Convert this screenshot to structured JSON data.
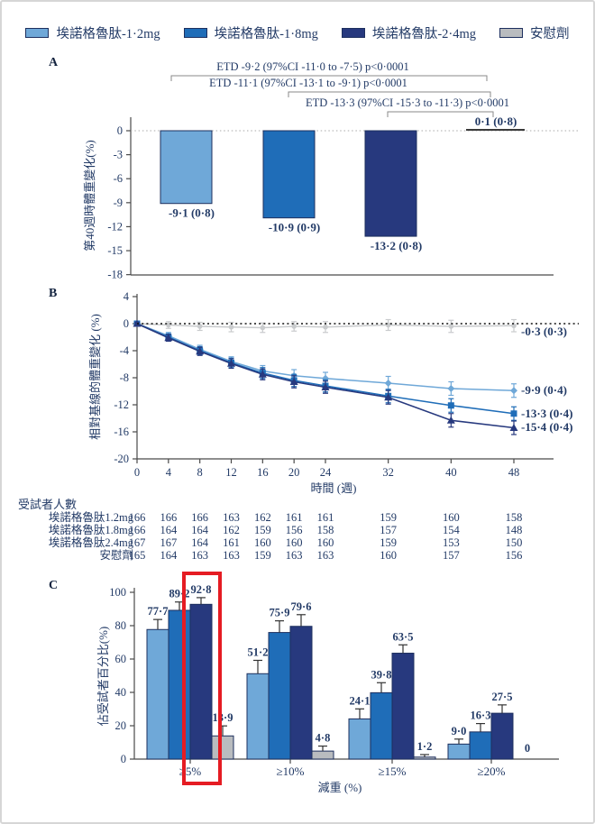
{
  "colors": {
    "dose12": "#6fa8d8",
    "dose18": "#1f6db8",
    "dose24": "#27397e",
    "placebo": "#b9bcbf",
    "placebo_line": "#c9cbcd",
    "bar_stroke": "#1d2f5e",
    "text": "#223a66",
    "axis": "#4a4a4a",
    "error_bar": "#333333",
    "highlight": "#e51c23"
  },
  "legend": {
    "items": [
      {
        "label": "埃諾格魯肽-1·2mg",
        "color_key": "dose12"
      },
      {
        "label": "埃諾格魯肽-1·8mg",
        "color_key": "dose18"
      },
      {
        "label": "埃諾格魯肽-2·4mg",
        "color_key": "dose24"
      },
      {
        "label": "安慰劑",
        "color_key": "placebo"
      }
    ]
  },
  "panels": {
    "a_label": "A",
    "b_label": "B",
    "c_label": "C"
  },
  "chart_data": [
    {
      "id": "A",
      "type": "bar",
      "ylabel": "第40週時體重變化(%)",
      "yticks": [
        0,
        -3,
        -6,
        -9,
        -12,
        -15,
        -18
      ],
      "ylim": [
        -18,
        2
      ],
      "categories": [
        "埃諾格魯肽-1·2mg",
        "埃諾格魯肽-1·8mg",
        "埃諾格魯肽-2·4mg",
        "安慰劑"
      ],
      "values": [
        -9.1,
        -10.9,
        -13.2,
        0.1
      ],
      "value_labels": [
        "-9·1 (0·8)",
        "-10·9 (0·9)",
        "-13·2 (0·8)",
        "0·1 (0·8)"
      ],
      "annotations": [
        "ETD -9·2 (97%CI -11·0 to -7·5) p<0·0001",
        "ETD -11·1 (97%CI -13·1 to -9·1) p<0·0001",
        "ETD -13·3 (97%CI -15·3 to -11·3) p<0·0001"
      ]
    },
    {
      "id": "B",
      "type": "line",
      "ylabel": "相對基線的體重變化 (%)",
      "xlabel": "時間 (週)",
      "x": [
        0,
        4,
        8,
        12,
        16,
        20,
        24,
        32,
        40,
        48
      ],
      "yticks": [
        4,
        0,
        -4,
        -8,
        -12,
        -16,
        -20
      ],
      "ylim": [
        -20,
        4
      ],
      "series": [
        {
          "name": "安慰劑",
          "color_key": "placebo_line",
          "marker": "circle",
          "values": [
            0,
            -0.2,
            -0.4,
            -0.5,
            -0.6,
            -0.4,
            -0.5,
            -0.2,
            -0.4,
            -0.3
          ],
          "errors": [
            0.2,
            0.5,
            0.6,
            0.7,
            0.7,
            0.7,
            0.8,
            0.8,
            0.9,
            0.9
          ],
          "end_label": "-0·3 (0·3)"
        },
        {
          "name": "埃諾格魯肽-1·2mg",
          "color_key": "dose12",
          "marker": "diamond",
          "values": [
            0,
            -1.8,
            -3.8,
            -5.6,
            -7.0,
            -7.7,
            -8.1,
            -8.8,
            -9.6,
            -9.9
          ],
          "errors": [
            0.2,
            0.5,
            0.6,
            0.7,
            0.8,
            0.9,
            0.9,
            1.0,
            1.0,
            1.0
          ],
          "end_label": "-9·9 (0·4)"
        },
        {
          "name": "埃諾格魯肽-1·8mg",
          "color_key": "dose18",
          "marker": "square",
          "values": [
            0,
            -2.0,
            -4.0,
            -5.8,
            -7.3,
            -8.4,
            -9.2,
            -10.7,
            -12.1,
            -13.3
          ],
          "errors": [
            0.2,
            0.5,
            0.6,
            0.7,
            0.8,
            0.9,
            0.9,
            1.0,
            1.0,
            1.0
          ],
          "end_label": "-13·3 (0·4)"
        },
        {
          "name": "埃諾格魯肽-2·4mg",
          "color_key": "dose24",
          "marker": "triangle",
          "values": [
            0,
            -2.1,
            -4.1,
            -5.9,
            -7.5,
            -8.6,
            -9.4,
            -10.9,
            -14.3,
            -15.4
          ],
          "errors": [
            0.2,
            0.5,
            0.6,
            0.7,
            0.8,
            0.9,
            0.9,
            1.0,
            1.0,
            1.0
          ],
          "end_label": "-15·4 (0·4)"
        }
      ],
      "participants": {
        "title": "受試者人數",
        "rows": [
          {
            "label": "埃諾格魯肽1.2mg",
            "values": [
              166,
              166,
              166,
              163,
              162,
              161,
              161,
              159,
              160,
              158
            ]
          },
          {
            "label": "埃諾格魯肽1.8mg",
            "values": [
              166,
              164,
              164,
              162,
              159,
              156,
              158,
              157,
              154,
              148
            ]
          },
          {
            "label": "埃諾格魯肽2.4mg",
            "values": [
              167,
              167,
              164,
              161,
              160,
              160,
              160,
              159,
              153,
              150
            ]
          },
          {
            "label": "安慰劑",
            "values": [
              165,
              164,
              163,
              163,
              159,
              163,
              163,
              160,
              157,
              156
            ]
          }
        ]
      }
    },
    {
      "id": "C",
      "type": "bar",
      "grouped": true,
      "ylabel": "佔受試者百分比(%)",
      "xlabel": "減重 (%)",
      "yticks": [
        0,
        20,
        40,
        60,
        80,
        100
      ],
      "ylim": [
        0,
        100
      ],
      "categories": [
        "≥5%",
        "≥10%",
        "≥15%",
        "≥20%"
      ],
      "series": [
        {
          "name": "埃諾格魯肽-1·2mg",
          "color_key": "dose12",
          "values": [
            77.7,
            51.2,
            24.1,
            9.0
          ],
          "errors": [
            6,
            8,
            6,
            3
          ],
          "labels": [
            "77·7",
            "51·2",
            "24·1",
            "9·0"
          ]
        },
        {
          "name": "埃諾格魯肽-1·8mg",
          "color_key": "dose18",
          "values": [
            89.2,
            75.9,
            39.8,
            16.3
          ],
          "errors": [
            5,
            7,
            6,
            5
          ],
          "labels": [
            "89·2",
            "75·9",
            "39·8",
            "16·3"
          ]
        },
        {
          "name": "埃諾格魯肽-2·4mg",
          "color_key": "dose24",
          "values": [
            92.8,
            79.6,
            63.5,
            27.5
          ],
          "errors": [
            4,
            7,
            5,
            5
          ],
          "labels": [
            "92·8",
            "79·6",
            "63·5",
            "27·5"
          ]
        },
        {
          "name": "安慰劑",
          "color_key": "placebo",
          "values": [
            13.9,
            4.8,
            1.2,
            0
          ],
          "errors": [
            6,
            3,
            1.5,
            0
          ],
          "labels": [
            "13·9",
            "4·8",
            "1·2",
            "0"
          ]
        }
      ],
      "highlight": {
        "category": "≥5%",
        "series": "埃諾格魯肽-2·4mg"
      }
    }
  ]
}
